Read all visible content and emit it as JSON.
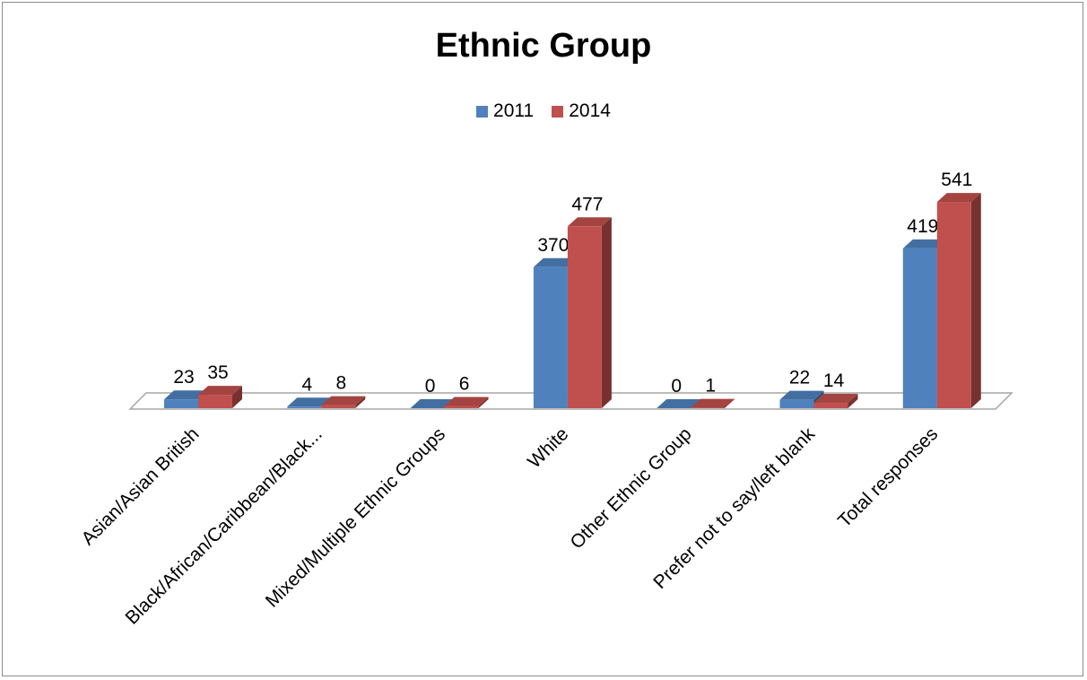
{
  "chart_data": {
    "type": "bar",
    "title": "Ethnic Group",
    "categories": [
      "Asian/Asian British",
      "Black/African/Caribbean/Black...",
      "Mixed/Multiple Ethnic Groups",
      "White",
      "Other Ethnic Group",
      "Prefer not to say/left blank",
      "Total responses"
    ],
    "series": [
      {
        "name": "2011",
        "color": "#4f81bd",
        "values": [
          23,
          4,
          0,
          370,
          0,
          22,
          419
        ]
      },
      {
        "name": "2014",
        "color": "#c0504d",
        "values": [
          35,
          8,
          6,
          477,
          1,
          14,
          541
        ]
      }
    ],
    "legend_position": "top",
    "grid": false
  }
}
